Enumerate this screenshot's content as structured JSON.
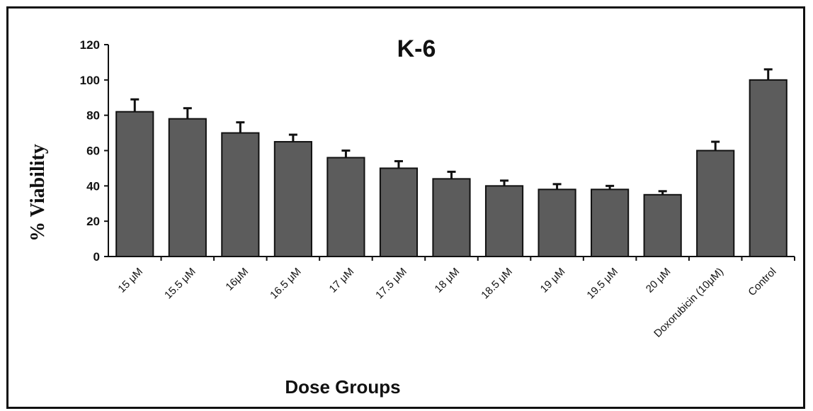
{
  "chart_data": {
    "type": "bar",
    "title": "K-6",
    "xlabel": "Dose Groups",
    "ylabel": "% Viability",
    "categories": [
      "15 μM",
      "15.5 μM",
      "16μM",
      "16.5 μM",
      "17 μM",
      "17.5 μM",
      "18 μM",
      "18.5 μM",
      "19 μM",
      "19.5 μM",
      "20 μM",
      "Doxorubicin (10μM)",
      "Control"
    ],
    "values": [
      82,
      78,
      70,
      65,
      56,
      50,
      44,
      40,
      38,
      38,
      35,
      60,
      100
    ],
    "errors": [
      7,
      6,
      6,
      4,
      4,
      4,
      4,
      3,
      3,
      2,
      2,
      5,
      6
    ],
    "ylim": [
      0,
      120
    ],
    "yticks": [
      0,
      20,
      40,
      60,
      80,
      100,
      120
    ],
    "grid": false,
    "colors": {
      "bar": "#5c5c5c",
      "edge": "#111111",
      "axis": "#111111"
    }
  }
}
